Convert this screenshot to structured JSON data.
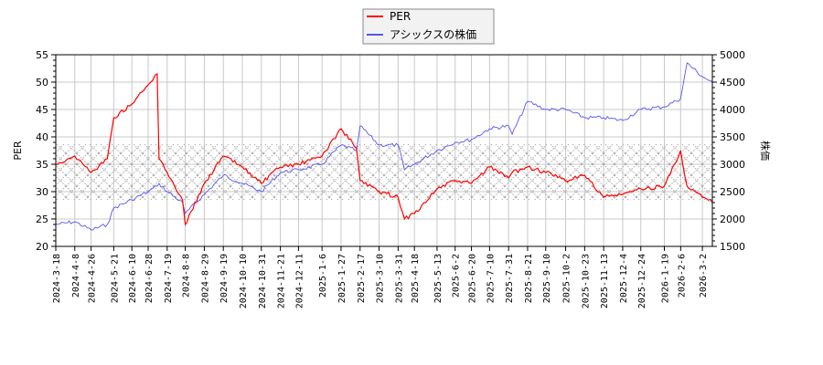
{
  "legend": {
    "items": [
      {
        "label": "PER",
        "color": "#ff0000"
      },
      {
        "label": "アシックスの株価",
        "color": "#5555ee"
      }
    ]
  },
  "axes": {
    "left_title": "PER",
    "right_title": "株価",
    "left_ticks": [
      "20",
      "25",
      "30",
      "35",
      "40",
      "45",
      "50",
      "55"
    ],
    "right_ticks": [
      "1500",
      "2000",
      "2500",
      "3000",
      "3500",
      "4000",
      "4500",
      "5000"
    ]
  },
  "chart_data": {
    "type": "line",
    "title": "",
    "xlabel": "",
    "ylabel": "PER",
    "ylabel_right": "株価",
    "ylim": [
      20,
      55
    ],
    "ylim_right": [
      1500,
      5000
    ],
    "grid": true,
    "legend_position": "top-center",
    "shaded_band": {
      "axis": "left",
      "from": 28.5,
      "to": 38.7,
      "style": "crosshatch"
    },
    "x_tick_labels": [
      "2024-3-18",
      "2024-4-8",
      "2024-4-26",
      "2024-5-21",
      "2024-6-10",
      "2024-6-28",
      "2024-7-19",
      "2024-8-8",
      "2024-8-29",
      "2024-9-19",
      "2024-10-10",
      "2024-10-31",
      "2024-11-21",
      "2024-12-11",
      "2025-1-6",
      "2025-1-27",
      "2025-2-17",
      "2025-3-10",
      "2025-3-31",
      "2025-4-18",
      "2025-5-13",
      "2025-6-2",
      "2025-6-20",
      "2025-7-10",
      "2025-7-31",
      "2025-8-21",
      "2025-9-10",
      "2025-10-2",
      "2025-10-23",
      "2025-11-13",
      "2025-12-4",
      "2025-12-24",
      "2026-1-19",
      "2026-2-6",
      "2026-3-2"
    ],
    "x": [
      "2024-3-18",
      "2024-4-8",
      "2024-4-26",
      "2024-5-14",
      "2024-5-21",
      "2024-6-10",
      "2024-6-28",
      "2024-7-8",
      "2024-7-10",
      "2024-7-19",
      "2024-8-5",
      "2024-8-8",
      "2024-8-29",
      "2024-9-19",
      "2024-10-10",
      "2024-10-31",
      "2024-11-21",
      "2024-12-11",
      "2025-1-6",
      "2025-1-27",
      "2025-2-13",
      "2025-2-17",
      "2025-3-10",
      "2025-3-31",
      "2025-4-7",
      "2025-4-18",
      "2025-5-13",
      "2025-6-2",
      "2025-6-20",
      "2025-7-10",
      "2025-7-31",
      "2025-8-4",
      "2025-8-21",
      "2025-9-10",
      "2025-10-2",
      "2025-10-23",
      "2025-11-13",
      "2025-12-4",
      "2025-12-24",
      "2026-1-19",
      "2026-2-6",
      "2026-2-13",
      "2026-3-2",
      "2026-3-13"
    ],
    "series": [
      {
        "name": "PER",
        "axis": "left",
        "color": "#ff0000",
        "values": [
          35.0,
          36.5,
          33.5,
          36.0,
          43.5,
          46.0,
          49.5,
          51.5,
          36.0,
          33.5,
          28.5,
          24.0,
          31.5,
          36.5,
          34.5,
          31.5,
          34.5,
          35.0,
          36.5,
          41.5,
          38.0,
          32.0,
          30.0,
          29.0,
          25.0,
          26.0,
          30.5,
          32.0,
          31.5,
          34.5,
          32.5,
          33.5,
          34.5,
          33.5,
          32.0,
          33.0,
          29.0,
          29.5,
          30.5,
          31.0,
          37.5,
          31.0,
          29.0,
          28.0
        ]
      },
      {
        "name": "アシックスの株価",
        "axis": "right",
        "color": "#5555ee",
        "values": [
          1900,
          1950,
          1800,
          1900,
          2200,
          2350,
          2500,
          2600,
          2650,
          2500,
          2300,
          2100,
          2450,
          2800,
          2650,
          2500,
          2850,
          2900,
          3000,
          3350,
          3250,
          3700,
          3350,
          3350,
          2900,
          3000,
          3250,
          3400,
          3450,
          3650,
          3700,
          3550,
          4150,
          4000,
          4000,
          3850,
          3850,
          3800,
          4000,
          4050,
          4200,
          4850,
          4600,
          4500
        ]
      }
    ]
  }
}
